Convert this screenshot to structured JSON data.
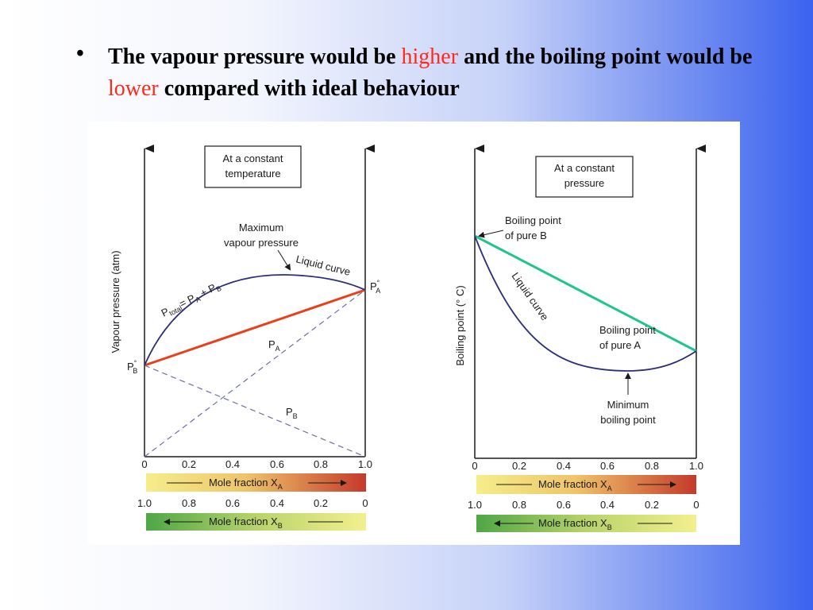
{
  "slide": {
    "bullet": "•",
    "text_1": "The vapour pressure would be ",
    "highlight_1": "higher",
    "text_2": " and the boiling point would be ",
    "highlight_2": "lower",
    "text_3": " compared with ideal behaviour",
    "highlight_color": "#ff2a1a",
    "background_gradient": [
      "#ffffff",
      "#3a62ef"
    ]
  },
  "left_diagram": {
    "box_line1": "At a constant",
    "box_line2": "temperature",
    "y_label": "Vapour pressure (atm)",
    "max_label_line1": "Maximum",
    "max_label_line2": "vapour pressure",
    "liquid_curve_label": "Liquid curve",
    "ptotal_label_p": "P",
    "ptotal_label_sub": "total",
    "ptotal_label_rest": "= P",
    "ptotal_label_sub_a": "A",
    "ptotal_label_plus": " + P",
    "ptotal_label_sub_b": "B",
    "pa_label": "P",
    "pa_sub": "A",
    "pb_label": "P",
    "pb_sub": "B",
    "pa0_label": "P",
    "pa0_sub": "A",
    "pb0_label": "P",
    "pb0_sub": "B",
    "degree": "°",
    "ideal_line_color": "#e8401b",
    "curve_color": "#2b2e7a"
  },
  "right_diagram": {
    "box_line1": "At a constant",
    "box_line2": "pressure",
    "y_label": "Boiling point (° C)",
    "bp_b_line1": "Boiling point",
    "bp_b_line2": "of pure B",
    "bp_a_line1": "Boiling point",
    "bp_a_line2": "of pure A",
    "liquid_curve_label": "Liquid curve",
    "min_line1": "Minimum",
    "min_line2": "boiling point",
    "ideal_line_color": "#1fc58c",
    "curve_color": "#2b2e7a"
  },
  "axes": {
    "xa_ticks": [
      "0",
      "0.2",
      "0.4",
      "0.6",
      "0.8",
      "1.0"
    ],
    "xb_ticks": [
      "1.0",
      "0.8",
      "0.6",
      "0.4",
      "0.2",
      "0"
    ],
    "bar_a_label": "Mole fraction X",
    "bar_a_sub": "A",
    "bar_b_label": "Mole fraction X",
    "bar_b_sub": "B"
  }
}
